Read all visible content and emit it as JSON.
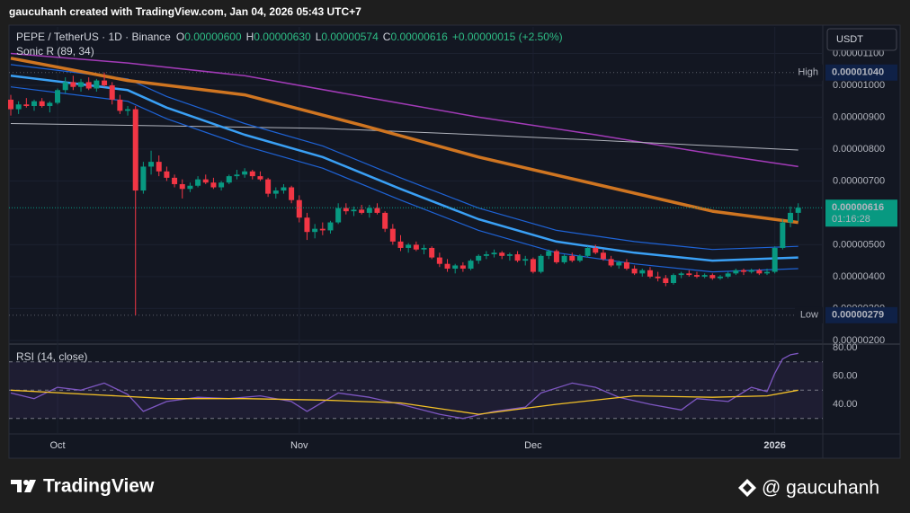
{
  "header": "gaucuhanh created with TradingView.com, Jan 04, 2026 05:43 UTC+7",
  "chart_data": [
    {
      "type": "candlestick",
      "symbol": "PEPE / TetherUS · 1D · Binance",
      "ohlc_legend": [
        {
          "label": "O",
          "value": "0.00000600"
        },
        {
          "label": "H",
          "value": "0.00000630"
        },
        {
          "label": "L",
          "value": "0.00000574"
        },
        {
          "label": "C",
          "value": "0.00000616"
        }
      ],
      "change": "+0.00000015 (+2.50%)",
      "indicator": "Sonic R (89, 34)",
      "currency": "USDT",
      "up_color": "#089981",
      "down_color": "#f23645",
      "candles": [
        [
          9.55e-06,
          9.7e-06,
          9.05e-06,
          9.25e-06
        ],
        [
          9.25e-06,
          9.5e-06,
          9.1e-06,
          9.4e-06
        ],
        [
          9.4e-06,
          9.6e-06,
          9.3e-06,
          9.35e-06
        ],
        [
          9.35e-06,
          9.55e-06,
          9.2e-06,
          9.5e-06
        ],
        [
          9.5e-06,
          9.6e-06,
          9.3e-06,
          9.35e-06
        ],
        [
          9.35e-06,
          9.5e-06,
          9.15e-06,
          9.45e-06
        ],
        [
          9.45e-06,
          9.9e-06,
          9.4e-06,
          9.85e-06
        ],
        [
          9.85e-06,
          1.025e-05,
          9.75e-06,
          1.01e-05
        ],
        [
          1.01e-05,
          1.03e-05,
          9.85e-06,
          9.95e-06
        ],
        [
          9.95e-06,
          1.02e-05,
          9.8e-06,
          1.01e-05
        ],
        [
          1.01e-05,
          1.025e-05,
          9.85e-06,
          9.9e-06
        ],
        [
          9.9e-06,
          1.02e-05,
          9.8e-06,
          1.015e-05
        ],
        [
          1.015e-05,
          1.04e-05,
          9.95e-06,
          1e-05
        ],
        [
          1e-05,
          1.01e-05,
          9.4e-06,
          9.55e-06
        ],
        [
          9.55e-06,
          9.7e-06,
          9.1e-06,
          9.2e-06
        ],
        [
          9.2e-06,
          9.35e-06,
          9.05e-06,
          9.25e-06
        ],
        [
          9.25e-06,
          9.35e-06,
          2.79e-06,
          6.7e-06
        ],
        [
          6.7e-06,
          7.6e-06,
          6.6e-06,
          7.45e-06
        ],
        [
          7.45e-06,
          7.95e-06,
          7.2e-06,
          7.6e-06
        ],
        [
          7.6e-06,
          7.8e-06,
          7.15e-06,
          7.3e-06
        ],
        [
          7.3e-06,
          7.45e-06,
          7e-06,
          7.1e-06
        ],
        [
          7.1e-06,
          7.2e-06,
          6.8e-06,
          6.9e-06
        ],
        [
          6.9e-06,
          7.05e-06,
          6.45e-06,
          6.75e-06
        ],
        [
          6.75e-06,
          6.95e-06,
          6.65e-06,
          6.85e-06
        ],
        [
          6.85e-06,
          7.15e-06,
          6.8e-06,
          7.05e-06
        ],
        [
          7.05e-06,
          7.2e-06,
          6.9e-06,
          6.95e-06
        ],
        [
          6.95e-06,
          7.1e-06,
          6.75e-06,
          6.8e-06
        ],
        [
          6.8e-06,
          7e-06,
          6.7e-06,
          6.95e-06
        ],
        [
          6.95e-06,
          7.2e-06,
          6.9e-06,
          7.15e-06
        ],
        [
          7.15e-06,
          7.35e-06,
          7.05e-06,
          7.2e-06
        ],
        [
          7.2e-06,
          7.4e-06,
          7.1e-06,
          7.3e-06
        ],
        [
          7.3e-06,
          7.35e-06,
          7.05e-06,
          7.15e-06
        ],
        [
          7.15e-06,
          7.3e-06,
          7e-06,
          7.05e-06
        ],
        [
          7.05e-06,
          7.1e-06,
          6.5e-06,
          6.6e-06
        ],
        [
          6.6e-06,
          6.8e-06,
          6.45e-06,
          6.7e-06
        ],
        [
          6.7e-06,
          6.9e-06,
          6.6e-06,
          6.8e-06
        ],
        [
          6.8e-06,
          6.85e-06,
          6.3e-06,
          6.4e-06
        ],
        [
          6.4e-06,
          6.55e-06,
          5.7e-06,
          5.85e-06
        ],
        [
          5.85e-06,
          6e-06,
          5.15e-06,
          5.4e-06
        ],
        [
          5.4e-06,
          5.65e-06,
          5.2e-06,
          5.5e-06
        ],
        [
          5.5e-06,
          5.7e-06,
          5.3e-06,
          5.45e-06
        ],
        [
          5.45e-06,
          5.75e-06,
          5.35e-06,
          5.7e-06
        ],
        [
          5.7e-06,
          6.3e-06,
          5.65e-06,
          6.15e-06
        ],
        [
          6.15e-06,
          6.3e-06,
          5.95e-06,
          6.05e-06
        ],
        [
          6.05e-06,
          6.2e-06,
          5.9e-06,
          6.1e-06
        ],
        [
          6.1e-06,
          6.25e-06,
          5.95e-06,
          6e-06
        ],
        [
          6e-06,
          6.25e-06,
          5.85e-06,
          6.15e-06
        ],
        [
          6.15e-06,
          6.3e-06,
          5.95e-06,
          6e-06
        ],
        [
          6e-06,
          6.05e-06,
          5.4e-06,
          5.5e-06
        ],
        [
          5.5e-06,
          5.65e-06,
          5e-06,
          5.1e-06
        ],
        [
          5.1e-06,
          5.3e-06,
          4.8e-06,
          4.9e-06
        ],
        [
          4.9e-06,
          5.05e-06,
          4.75e-06,
          5e-06
        ],
        [
          5e-06,
          5.1e-06,
          4.8e-06,
          4.85e-06
        ],
        [
          4.85e-06,
          5e-06,
          4.7e-06,
          4.9e-06
        ],
        [
          4.9e-06,
          4.95e-06,
          4.55e-06,
          4.6e-06
        ],
        [
          4.6e-06,
          4.75e-06,
          4.3e-06,
          4.4e-06
        ],
        [
          4.4e-06,
          4.55e-06,
          4.15e-06,
          4.25e-06
        ],
        [
          4.25e-06,
          4.4e-06,
          4.1e-06,
          4.35e-06
        ],
        [
          4.35e-06,
          4.45e-06,
          4.15e-06,
          4.25e-06
        ],
        [
          4.25e-06,
          4.55e-06,
          4.2e-06,
          4.5e-06
        ],
        [
          4.5e-06,
          4.7e-06,
          4.4e-06,
          4.65e-06
        ],
        [
          4.65e-06,
          4.8e-06,
          4.55e-06,
          4.7e-06
        ],
        [
          4.7e-06,
          4.85e-06,
          4.6e-06,
          4.75e-06
        ],
        [
          4.75e-06,
          4.8e-06,
          4.55e-06,
          4.65e-06
        ],
        [
          4.65e-06,
          4.75e-06,
          4.5e-06,
          4.7e-06
        ],
        [
          4.7e-06,
          4.8e-06,
          4.45e-06,
          4.5e-06
        ],
        [
          4.5e-06,
          4.65e-06,
          4.35e-06,
          4.55e-06
        ],
        [
          4.55e-06,
          4.6e-06,
          4.1e-06,
          4.15e-06
        ],
        [
          4.15e-06,
          4.7e-06,
          4.1e-06,
          4.65e-06
        ],
        [
          4.65e-06,
          4.85e-06,
          4.55e-06,
          4.8e-06
        ],
        [
          4.8e-06,
          4.85e-06,
          4.4e-06,
          4.45e-06
        ],
        [
          4.45e-06,
          4.7e-06,
          4.4e-06,
          4.65e-06
        ],
        [
          4.65e-06,
          4.75e-06,
          4.45e-06,
          4.5e-06
        ],
        [
          4.5e-06,
          4.7e-06,
          4.45e-06,
          4.65e-06
        ],
        [
          4.65e-06,
          4.95e-06,
          4.6e-06,
          4.9e-06
        ],
        [
          4.9e-06,
          5e-06,
          4.7e-06,
          4.75e-06
        ],
        [
          4.75e-06,
          4.85e-06,
          4.5e-06,
          4.55e-06
        ],
        [
          4.55e-06,
          4.65e-06,
          4.3e-06,
          4.35e-06
        ],
        [
          4.35e-06,
          4.5e-06,
          4.25e-06,
          4.45e-06
        ],
        [
          4.45e-06,
          4.55e-06,
          4.2e-06,
          4.25e-06
        ],
        [
          4.25e-06,
          4.35e-06,
          4.05e-06,
          4.1e-06
        ],
        [
          4.1e-06,
          4.25e-06,
          4e-06,
          4.2e-06
        ],
        [
          4.2e-06,
          4.3e-06,
          3.95e-06,
          4e-06
        ],
        [
          4e-06,
          4.15e-06,
          3.85e-06,
          3.95e-06
        ],
        [
          3.95e-06,
          4.05e-06,
          3.7e-06,
          3.8e-06
        ],
        [
          3.8e-06,
          4.1e-06,
          3.75e-06,
          4.05e-06
        ],
        [
          4.05e-06,
          4.15e-06,
          3.95e-06,
          4.1e-06
        ],
        [
          4.1e-06,
          4.2e-06,
          4e-06,
          4.05e-06
        ],
        [
          4.05e-06,
          4.15e-06,
          3.95e-06,
          4e-06
        ],
        [
          4e-06,
          4.1e-06,
          3.95e-06,
          4.05e-06
        ],
        [
          4.05e-06,
          4.1e-06,
          3.9e-06,
          3.95e-06
        ],
        [
          3.95e-06,
          4.05e-06,
          3.9e-06,
          4e-06
        ],
        [
          4e-06,
          4.15e-06,
          3.95e-06,
          4.1e-06
        ],
        [
          4.1e-06,
          4.25e-06,
          4.05e-06,
          4.2e-06
        ],
        [
          4.2e-06,
          4.25e-06,
          4.05e-06,
          4.15e-06
        ],
        [
          4.15e-06,
          4.25e-06,
          4.1e-06,
          4.2e-06
        ],
        [
          4.2e-06,
          4.25e-06,
          4.05e-06,
          4.1e-06
        ],
        [
          4.1e-06,
          4.25e-06,
          4.05e-06,
          4.15e-06
        ],
        [
          4.15e-06,
          4.95e-06,
          4.1e-06,
          4.9e-06
        ],
        [
          4.9e-06,
          5.8e-06,
          4.85e-06,
          5.7e-06
        ],
        [
          5.7e-06,
          6.2e-06,
          5.55e-06,
          6e-06
        ],
        [
          6e-06,
          6.3e-06,
          5.74e-06,
          6.16e-06
        ]
      ],
      "xlim": [
        -0.23,
        104.15
      ],
      "xticks": [
        {
          "value": 6,
          "label": "Oct"
        },
        {
          "value": 37,
          "label": "Nov"
        },
        {
          "value": 67,
          "label": "Dec"
        },
        {
          "value": 98,
          "label": "2026"
        }
      ],
      "ylim": [
        1.94e-06,
        1.183e-05
      ],
      "yticks": [
        {
          "value": 1.1e-05,
          "label": "0.00001100"
        },
        {
          "value": 1e-05,
          "label": "0.00001000"
        },
        {
          "value": 9e-06,
          "label": "0.00000900"
        },
        {
          "value": 8e-06,
          "label": "0.00000800"
        },
        {
          "value": 7e-06,
          "label": "0.00000700"
        },
        {
          "value": 5e-06,
          "label": "0.00000500"
        },
        {
          "value": 4e-06,
          "label": "0.00000400"
        },
        {
          "value": 3e-06,
          "label": "0.00000300"
        },
        {
          "value": 2e-06,
          "label": "0.00000200"
        }
      ],
      "grid": true,
      "lines": [
        {
          "color": "#a33bb8",
          "x": [
            0,
            15,
            30,
            45,
            60,
            75,
            90,
            101
          ],
          "values": [
            1.1e-05,
            1.07e-05,
            1.03e-05,
            9.65e-06,
            9e-06,
            8.45e-06,
            7.85e-06,
            7.45e-06
          ]
        },
        {
          "color": "#b2b5be",
          "x": [
            0,
            40,
            60,
            80,
            101
          ],
          "values": [
            8.8e-06,
            8.65e-06,
            8.45e-06,
            8.22e-06,
            7.97e-06
          ]
        },
        {
          "color": "#1e63d6",
          "x": [
            0,
            10,
            15,
            20,
            30,
            40,
            50,
            60,
            70,
            80,
            90,
            101
          ],
          "values": [
            1.065e-05,
            1.035e-05,
            1.02e-05,
            9.65e-06,
            8.8e-06,
            8.1e-06,
            7.1e-06,
            6.15e-06,
            5.45e-06,
            5.1e-06,
            4.85e-06,
            4.95e-06
          ]
        },
        {
          "color": "#1e63d6",
          "x": [
            0,
            10,
            15,
            20,
            30,
            40,
            50,
            60,
            70,
            80,
            90,
            101
          ],
          "values": [
            9.95e-06,
            9.65e-06,
            9.5e-06,
            8.95e-06,
            8.1e-06,
            7.4e-06,
            6.4e-06,
            5.45e-06,
            4.75e-06,
            4.4e-06,
            4.15e-06,
            4.25e-06
          ]
        },
        {
          "color": "#3aa0f5",
          "x": [
            0,
            10,
            15,
            20,
            30,
            40,
            50,
            60,
            70,
            80,
            90,
            101
          ],
          "values": [
            1.03e-05,
            1e-05,
            9.85e-06,
            9.3e-06,
            8.45e-06,
            7.75e-06,
            6.75e-06,
            5.8e-06,
            5.1e-06,
            4.75e-06,
            4.5e-06,
            4.6e-06
          ]
        },
        {
          "color": "#cf7521",
          "x": [
            0,
            15,
            30,
            45,
            60,
            75,
            90,
            101
          ],
          "values": [
            1.085e-05,
            1.015e-05,
            9.7e-06,
            8.75e-06,
            7.75e-06,
            6.9e-06,
            6.05e-06,
            5.7e-06
          ]
        }
      ],
      "high": {
        "label": "High",
        "value": 1.04e-05,
        "value_label": "0.00001040"
      },
      "low": {
        "label": "Low",
        "value": 2.79e-06,
        "value_label": "0.00000279"
      },
      "last": {
        "value": 6.16e-06,
        "value_label": "0.00000616",
        "countdown": "01:16:28"
      }
    },
    {
      "type": "line",
      "title": "RSI (14, close)",
      "xlim": [
        -0.23,
        104.15
      ],
      "ylim": [
        19.7,
        81.3
      ],
      "yticks": [
        {
          "value": 80,
          "label": "80.00"
        },
        {
          "value": 60,
          "label": "60.00"
        },
        {
          "value": 40,
          "label": "40.00"
        }
      ],
      "bands": [
        70,
        50,
        30
      ],
      "series": [
        {
          "color": "#7e57c2",
          "x": [
            0,
            3,
            6,
            9,
            12,
            15,
            17,
            20,
            24,
            28,
            32,
            36,
            38,
            42,
            46,
            50,
            55,
            58,
            62,
            66,
            68,
            72,
            75,
            78,
            82,
            86,
            88,
            92,
            95,
            97,
            98,
            99,
            100,
            101
          ],
          "values": [
            48,
            44,
            52,
            50,
            55,
            47,
            35,
            42,
            45,
            44,
            46,
            42,
            35,
            48,
            45,
            40,
            33,
            30,
            35,
            38,
            48,
            55,
            52,
            45,
            40,
            36,
            44,
            42,
            52,
            49,
            62,
            72,
            75,
            76
          ]
        },
        {
          "color": "#f5c227",
          "x": [
            0,
            10,
            20,
            30,
            40,
            50,
            60,
            70,
            80,
            90,
            97,
            101
          ],
          "values": [
            50,
            47,
            44,
            44,
            43,
            41,
            33,
            40,
            46,
            45,
            46,
            50
          ]
        }
      ]
    }
  ],
  "footer": {
    "brand": "TradingView",
    "author": "@ gaucuhanh"
  }
}
